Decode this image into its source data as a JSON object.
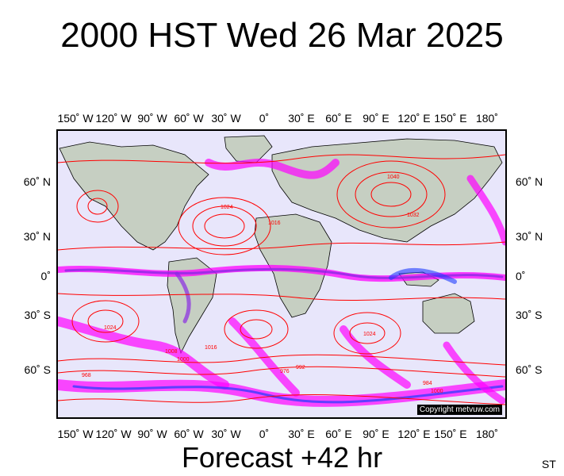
{
  "title": "2000 HST Wed 26 Mar 2025",
  "forecast": "Forecast +42 hr",
  "corner_label": "ST",
  "copyright": "Copyright metvuw.com",
  "lon_labels": [
    "150˚ W",
    "120˚ W",
    "90˚ W",
    "60˚ W",
    "30˚ W",
    "0˚",
    "30˚ E",
    "60˚ E",
    "90˚ E",
    "120˚ E",
    "150˚ E",
    "180˚"
  ],
  "lat_labels": [
    "60˚ N",
    "30˚ N",
    "0˚",
    "30˚ S",
    "60˚ S"
  ],
  "colors": {
    "ocean": "#e8e6fb",
    "land": "#c6cfc2",
    "isobar": "#ff0000",
    "precip_magenta": "#ff00ff",
    "precip_purple": "#8a2be2",
    "precip_blue": "#1e3cff",
    "coast": "#000000"
  },
  "map_layers": [
    "mean sea level pressure isobars",
    "precipitation",
    "coastlines"
  ],
  "isobar_labels": [
    "1000",
    "1008",
    "1016",
    "1024",
    "1032",
    "1040",
    "992",
    "984",
    "976",
    "968"
  ]
}
